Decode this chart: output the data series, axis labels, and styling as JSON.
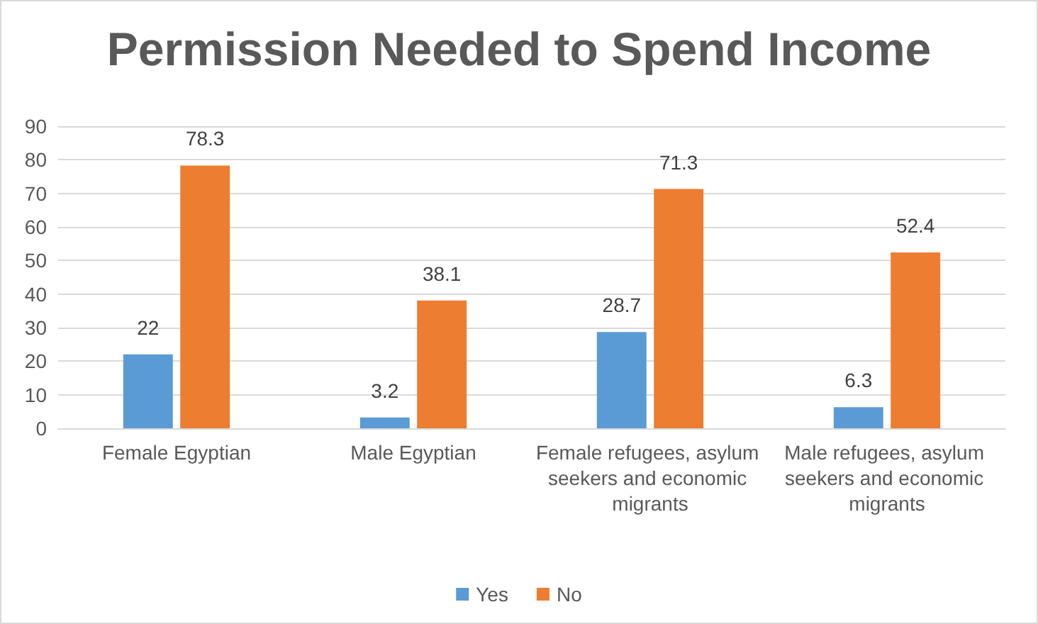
{
  "chart_data": {
    "type": "bar",
    "title": "Permission Needed to Spend Income",
    "categories": [
      "Female Egyptian",
      "Male Egyptian",
      "Female refugees, asylum seekers and economic migrants",
      "Male refugees, asylum seekers and economic migrants"
    ],
    "series": [
      {
        "name": "Yes",
        "color": "#5b9bd5",
        "values": [
          22,
          3.2,
          28.7,
          6.3
        ]
      },
      {
        "name": "No",
        "color": "#ed7d31",
        "values": [
          78.3,
          38.1,
          71.3,
          52.4
        ]
      }
    ],
    "ylim": [
      0,
      90
    ],
    "yticks": [
      0,
      10,
      20,
      30,
      40,
      50,
      60,
      70,
      80,
      90
    ],
    "grid": "y",
    "legend": "bottom",
    "data_labels": true
  }
}
